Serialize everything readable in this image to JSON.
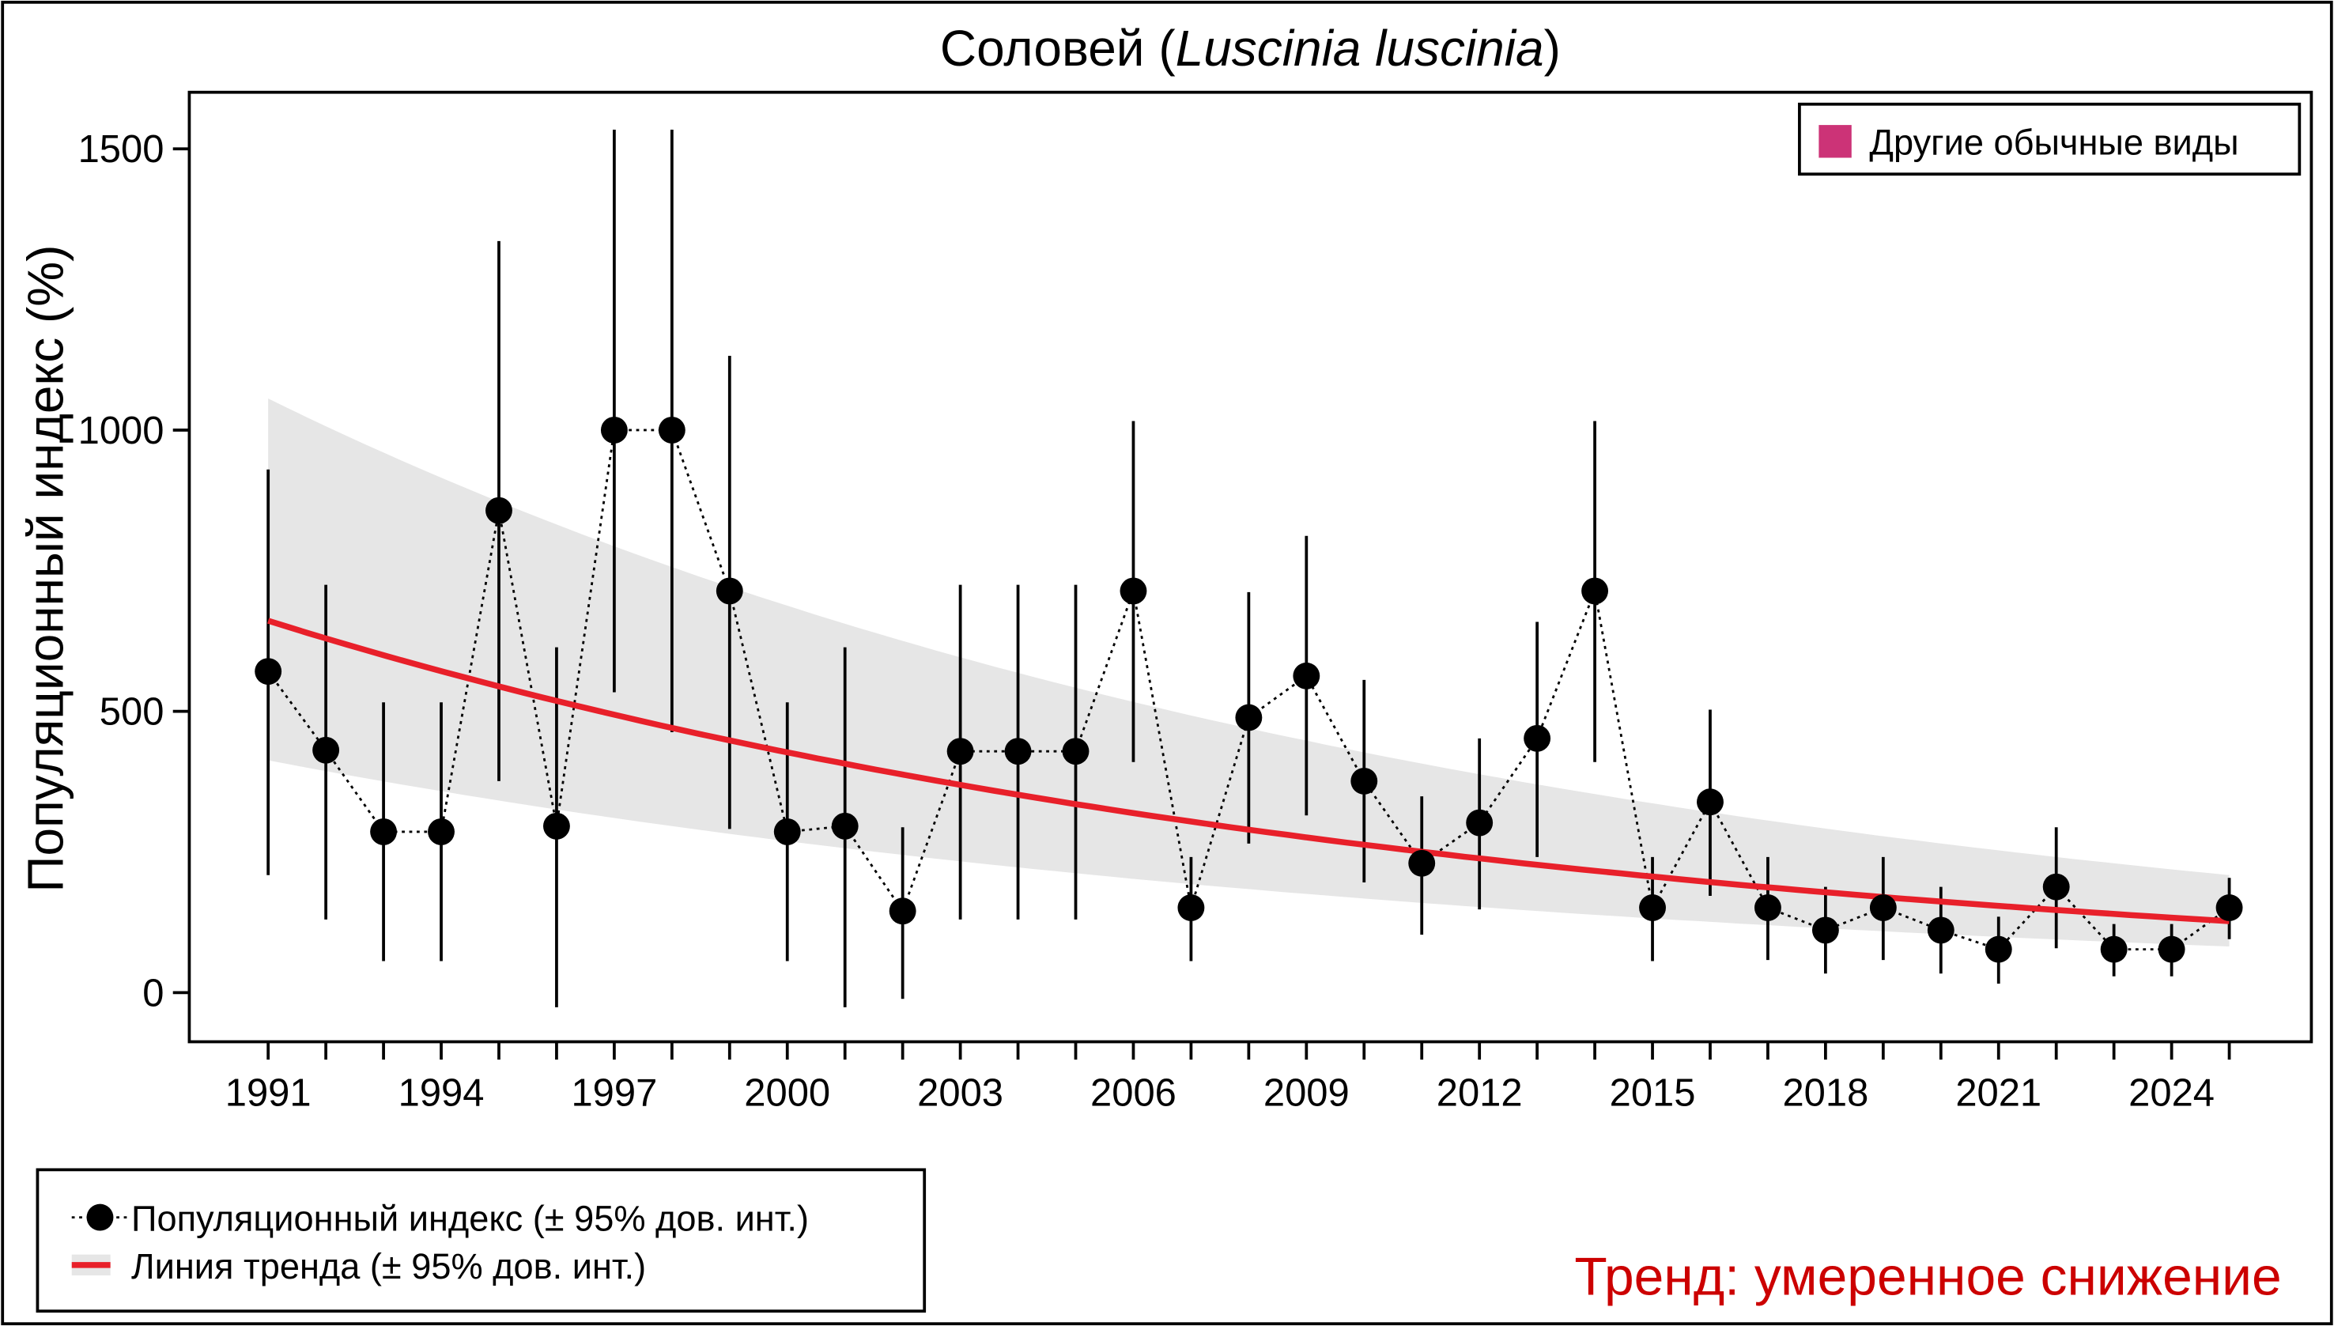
{
  "chart_data": {
    "type": "line",
    "title_main": "Соловей (",
    "title_italic": "Luscinia luscinia",
    "title_end": ")",
    "ylabel": "Популяционный индекс (%)",
    "xlabel": "",
    "ylim": [
      -60,
      1600
    ],
    "xlim": [
      1990,
      2026
    ],
    "yticks": [
      0,
      500,
      1000,
      1500
    ],
    "xticks": [
      1991,
      1994,
      1997,
      2000,
      2003,
      2006,
      2009,
      2012,
      2015,
      2018,
      2021,
      2024
    ],
    "grid": false,
    "x": [
      1991,
      1992,
      1993,
      1994,
      1995,
      1996,
      1997,
      1998,
      1999,
      2000,
      2001,
      2002,
      2003,
      2004,
      2005,
      2006,
      2007,
      2008,
      2009,
      2010,
      2011,
      2012,
      2013,
      2014,
      2015,
      2016,
      2017,
      2018,
      2019,
      2020,
      2021,
      2022,
      2023,
      2024,
      2025
    ],
    "series": [
      {
        "name": "Популяционный индекс (± 95% дов. инт.)",
        "values": [
          571,
          431,
          286,
          286,
          857,
          296,
          1000,
          1000,
          714,
          286,
          296,
          145,
          429,
          429,
          429,
          714,
          151,
          489,
          563,
          376,
          230,
          302,
          452,
          714,
          151,
          339,
          151,
          111,
          151,
          111,
          77,
          188,
          77,
          77,
          151
        ],
        "ci_upper": [
          930,
          725,
          516,
          516,
          1336,
          614,
          1534,
          1534,
          1132,
          516,
          614,
          294,
          725,
          725,
          725,
          1016,
          241,
          712,
          812,
          556,
          349,
          452,
          659,
          1016,
          241,
          503,
          241,
          188,
          241,
          188,
          135,
          294,
          122,
          122,
          204
        ],
        "ci_lower": [
          209,
          130,
          56,
          56,
          376,
          -26,
          534,
          463,
          291,
          56,
          -26,
          -11,
          130,
          130,
          130,
          410,
          56,
          265,
          315,
          196,
          103,
          148,
          241,
          410,
          56,
          172,
          58,
          34,
          58,
          34,
          16,
          79,
          29,
          29,
          95
        ],
        "color": "#000000"
      },
      {
        "name": "Линия тренда (± 95% дов. инт.)",
        "start": {
          "x": 1991,
          "y": 661,
          "ci_upper": 1056,
          "ci_lower": 413
        },
        "end": {
          "x": 2025,
          "y": 127,
          "ci_upper": 209,
          "ci_lower": 82
        },
        "color": "#e8202a",
        "band_color": "#e6e6e6"
      }
    ],
    "category_legend": {
      "label": "Другие обычные виды",
      "color": "#cc3377",
      "placement": "top-right"
    },
    "series_legend_placement": "bottom-left",
    "trend_text": "Тренд: умеренное снижение",
    "trend_text_color": "#cc0000"
  }
}
